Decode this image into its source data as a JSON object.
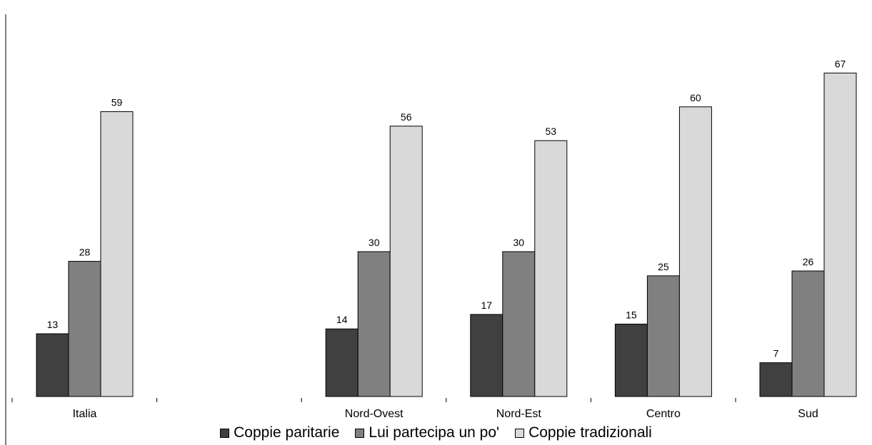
{
  "chart_data": {
    "type": "bar",
    "title": "",
    "xlabel": "",
    "ylabel": "",
    "ylim": [
      0,
      70
    ],
    "grid": false,
    "legend_position": "bottom",
    "categories": [
      "Italia",
      "",
      "Nord-Ovest",
      "Nord-Est",
      "Centro",
      "Sud"
    ],
    "series": [
      {
        "name": "Coppie paritarie",
        "color": "#404040",
        "values": [
          13,
          null,
          14,
          17,
          15,
          7
        ]
      },
      {
        "name": "Lui partecipa un po'",
        "color": "#808080",
        "values": [
          28,
          null,
          30,
          30,
          25,
          26
        ]
      },
      {
        "name": "Coppie tradizionali",
        "color": "#d9d9d9",
        "values": [
          59,
          null,
          56,
          53,
          60,
          67
        ]
      }
    ]
  }
}
